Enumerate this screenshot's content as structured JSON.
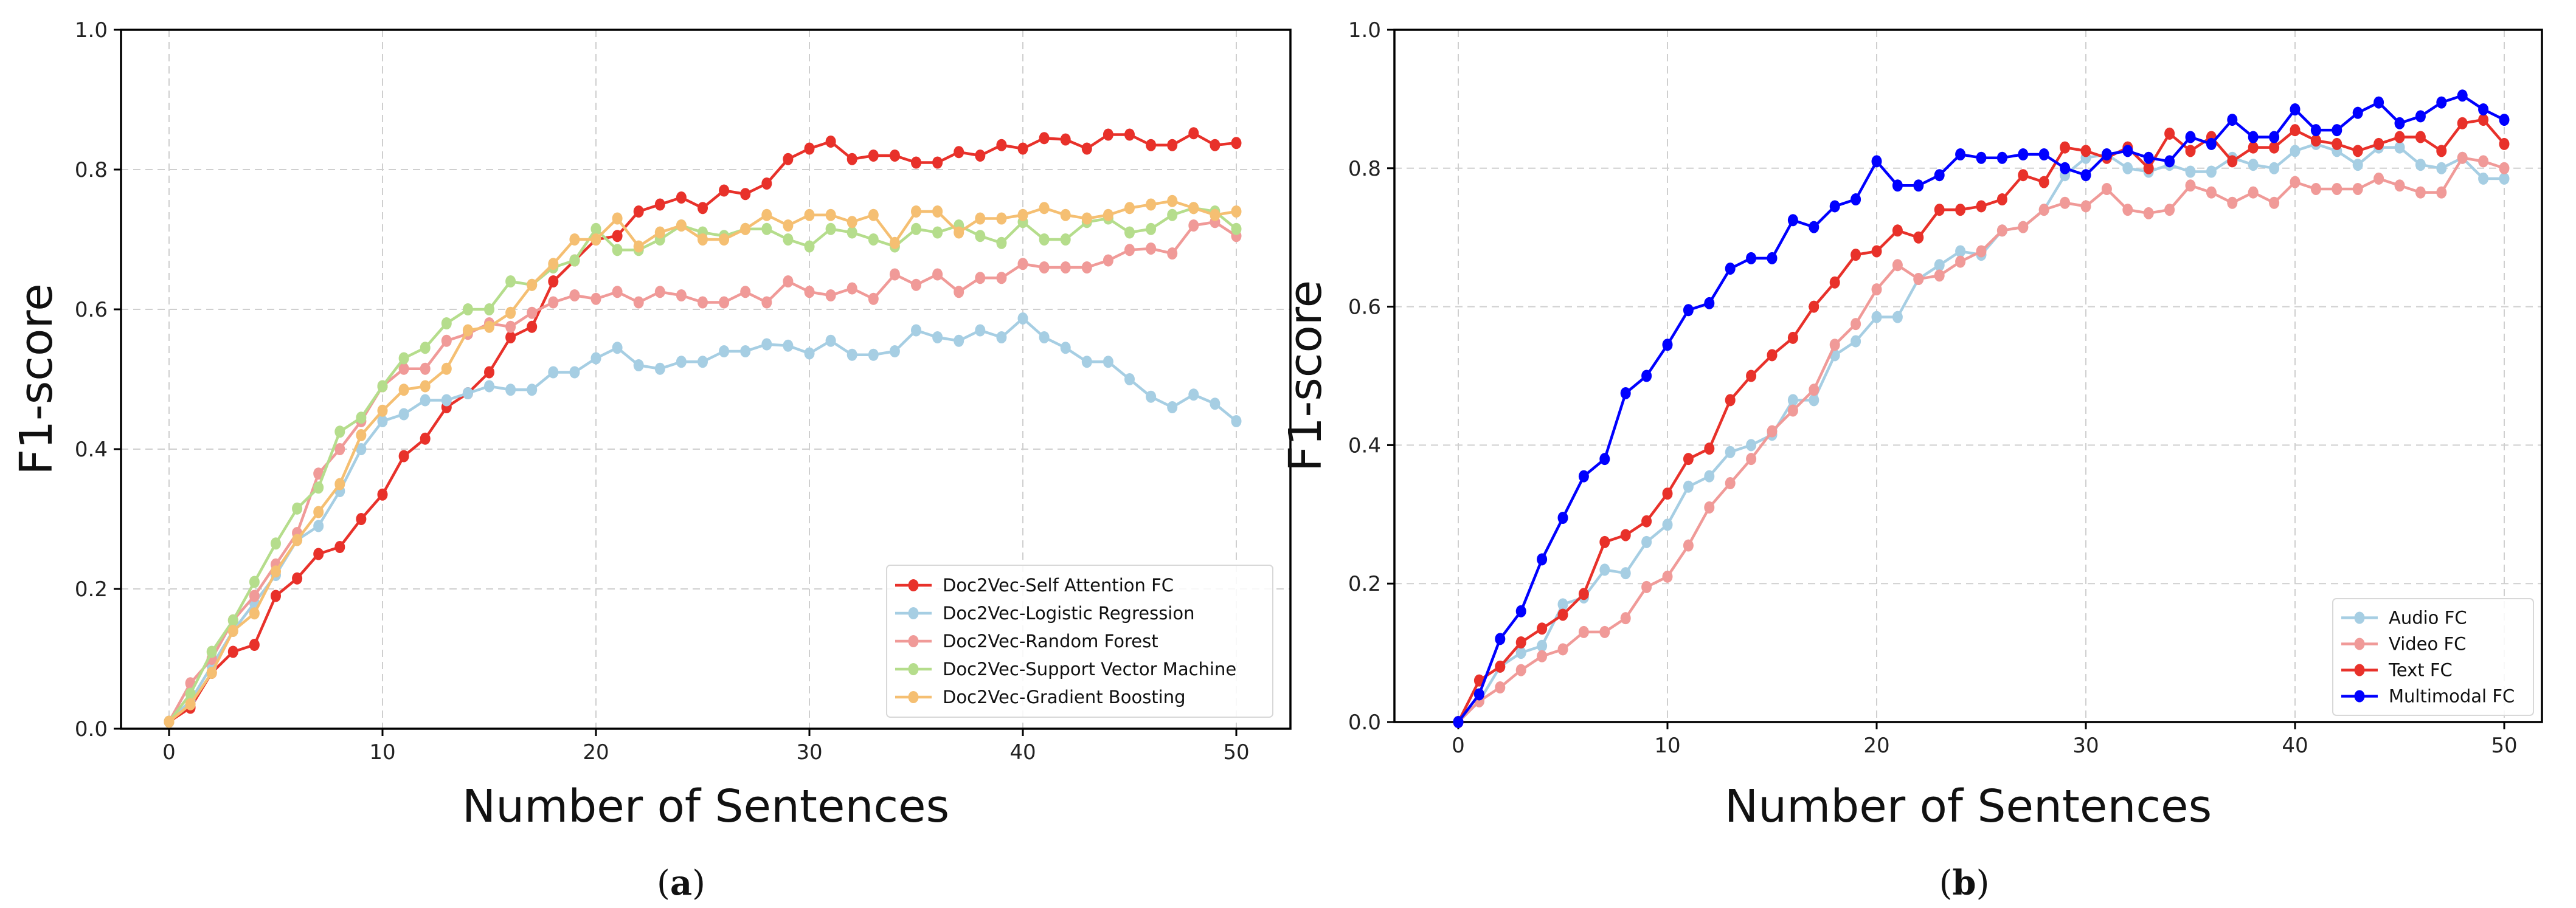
{
  "chart_data": [
    {
      "type": "line",
      "caption": "(a)",
      "caption_letter": "a",
      "xlabel": "Number of Sentences",
      "ylabel": "F1-score",
      "xlim": [
        -2,
        53
      ],
      "ylim": [
        0,
        1
      ],
      "xticks": [
        "0",
        "10",
        "20",
        "30",
        "40",
        "50"
      ],
      "yticks": [
        "0.0",
        "0.2",
        "0.4",
        "0.6",
        "0.8",
        "1.0"
      ],
      "grid": true,
      "legend_position": "bottom-right",
      "x": "0..50",
      "series": [
        {
          "name": "Doc2Vec-Self Attention FC",
          "color": "#e8312a",
          "values": [
            0.01,
            0.03,
            0.08,
            0.11,
            0.12,
            0.19,
            0.215,
            0.25,
            0.26,
            0.3,
            0.335,
            0.39,
            0.415,
            0.46,
            0.48,
            0.51,
            0.56,
            0.575,
            0.64,
            0.67,
            0.7,
            0.705,
            0.74,
            0.75,
            0.76,
            0.745,
            0.77,
            0.765,
            0.78,
            0.815,
            0.83,
            0.84,
            0.815,
            0.82,
            0.82,
            0.81,
            0.81,
            0.825,
            0.82,
            0.835,
            0.83,
            0.845,
            0.843,
            0.83,
            0.85,
            0.85,
            0.835,
            0.835,
            0.852,
            0.835,
            0.838
          ]
        },
        {
          "name": "Doc2Vec-Logistic Regression",
          "color": "#a6cee3",
          "values": [
            0.01,
            0.04,
            0.09,
            0.14,
            0.18,
            0.22,
            0.27,
            0.29,
            0.34,
            0.4,
            0.44,
            0.45,
            0.47,
            0.47,
            0.48,
            0.49,
            0.485,
            0.485,
            0.51,
            0.51,
            0.53,
            0.545,
            0.52,
            0.515,
            0.525,
            0.525,
            0.54,
            0.54,
            0.55,
            0.548,
            0.537,
            0.555,
            0.535,
            0.535,
            0.54,
            0.57,
            0.56,
            0.555,
            0.57,
            0.56,
            0.587,
            0.56,
            0.545,
            0.525,
            0.525,
            0.5,
            0.475,
            0.46,
            0.478,
            0.465,
            0.44
          ]
        },
        {
          "name": "Doc2Vec-Random Forest",
          "color": "#f09a98",
          "values": [
            0.01,
            0.065,
            0.1,
            0.155,
            0.19,
            0.235,
            0.28,
            0.365,
            0.4,
            0.44,
            0.49,
            0.515,
            0.515,
            0.555,
            0.565,
            0.58,
            0.575,
            0.595,
            0.61,
            0.62,
            0.615,
            0.625,
            0.61,
            0.625,
            0.62,
            0.61,
            0.61,
            0.625,
            0.61,
            0.64,
            0.625,
            0.62,
            0.63,
            0.615,
            0.65,
            0.635,
            0.65,
            0.625,
            0.645,
            0.645,
            0.665,
            0.66,
            0.66,
            0.66,
            0.67,
            0.685,
            0.687,
            0.68,
            0.72,
            0.725,
            0.705
          ]
        },
        {
          "name": "Doc2Vec-Support Vector Machine",
          "color": "#b5dd8c",
          "values": [
            0.01,
            0.05,
            0.11,
            0.155,
            0.21,
            0.265,
            0.315,
            0.345,
            0.425,
            0.445,
            0.49,
            0.53,
            0.545,
            0.58,
            0.6,
            0.6,
            0.64,
            0.635,
            0.66,
            0.67,
            0.715,
            0.685,
            0.685,
            0.7,
            0.72,
            0.71,
            0.705,
            0.715,
            0.715,
            0.7,
            0.69,
            0.715,
            0.71,
            0.7,
            0.69,
            0.715,
            0.71,
            0.72,
            0.705,
            0.695,
            0.725,
            0.7,
            0.7,
            0.725,
            0.73,
            0.71,
            0.715,
            0.735,
            0.745,
            0.74,
            0.715
          ]
        },
        {
          "name": "Doc2Vec-Gradient Boosting",
          "color": "#f5bf72",
          "values": [
            0.01,
            0.035,
            0.08,
            0.14,
            0.165,
            0.225,
            0.27,
            0.31,
            0.35,
            0.42,
            0.455,
            0.485,
            0.49,
            0.515,
            0.57,
            0.575,
            0.595,
            0.635,
            0.665,
            0.7,
            0.7,
            0.73,
            0.69,
            0.71,
            0.72,
            0.7,
            0.7,
            0.715,
            0.735,
            0.72,
            0.735,
            0.735,
            0.725,
            0.735,
            0.695,
            0.74,
            0.74,
            0.71,
            0.73,
            0.73,
            0.735,
            0.745,
            0.735,
            0.73,
            0.735,
            0.745,
            0.75,
            0.755,
            0.745,
            0.735,
            0.74
          ]
        }
      ]
    },
    {
      "type": "line",
      "caption": "(b)",
      "caption_letter": "b",
      "xlabel": "Number of Sentences",
      "ylabel": "F1-score",
      "xlim": [
        -2.5,
        52
      ],
      "ylim": [
        0,
        1
      ],
      "xticks": [
        "0",
        "10",
        "20",
        "30",
        "40",
        "50"
      ],
      "yticks": [
        "0.0",
        "0.2",
        "0.4",
        "0.6",
        "0.8",
        "1.0"
      ],
      "grid": true,
      "legend_position": "bottom-right",
      "x": "0..50",
      "series": [
        {
          "name": "Audio FC",
          "color": "#a6cee3",
          "values": [
            0.0,
            0.03,
            0.08,
            0.1,
            0.11,
            0.17,
            0.18,
            0.22,
            0.215,
            0.26,
            0.285,
            0.34,
            0.355,
            0.39,
            0.4,
            0.415,
            0.465,
            0.465,
            0.53,
            0.55,
            0.585,
            0.585,
            0.64,
            0.66,
            0.68,
            0.675,
            0.71,
            0.715,
            0.74,
            0.79,
            0.815,
            0.82,
            0.8,
            0.795,
            0.805,
            0.795,
            0.795,
            0.815,
            0.805,
            0.8,
            0.825,
            0.835,
            0.825,
            0.805,
            0.83,
            0.83,
            0.805,
            0.8,
            0.815,
            0.785,
            0.785
          ]
        },
        {
          "name": "Video FC",
          "color": "#f09a98",
          "values": [
            0.0,
            0.03,
            0.05,
            0.075,
            0.095,
            0.105,
            0.13,
            0.13,
            0.15,
            0.195,
            0.21,
            0.255,
            0.31,
            0.345,
            0.38,
            0.42,
            0.45,
            0.48,
            0.545,
            0.575,
            0.625,
            0.66,
            0.64,
            0.645,
            0.665,
            0.68,
            0.71,
            0.715,
            0.74,
            0.75,
            0.745,
            0.77,
            0.74,
            0.735,
            0.74,
            0.775,
            0.765,
            0.75,
            0.765,
            0.75,
            0.78,
            0.77,
            0.77,
            0.77,
            0.785,
            0.775,
            0.765,
            0.765,
            0.815,
            0.81,
            0.8
          ]
        },
        {
          "name": "Text FC",
          "color": "#e8312a",
          "values": [
            0.0,
            0.06,
            0.08,
            0.115,
            0.135,
            0.155,
            0.185,
            0.26,
            0.27,
            0.29,
            0.33,
            0.38,
            0.395,
            0.465,
            0.5,
            0.53,
            0.555,
            0.6,
            0.635,
            0.675,
            0.68,
            0.71,
            0.7,
            0.74,
            0.74,
            0.745,
            0.755,
            0.79,
            0.78,
            0.83,
            0.825,
            0.815,
            0.83,
            0.8,
            0.85,
            0.825,
            0.845,
            0.81,
            0.83,
            0.83,
            0.855,
            0.84,
            0.835,
            0.825,
            0.835,
            0.845,
            0.845,
            0.825,
            0.865,
            0.87,
            0.835
          ]
        },
        {
          "name": "Multimodal FC",
          "color": "#0000ff",
          "values": [
            0.0,
            0.04,
            0.12,
            0.16,
            0.235,
            0.295,
            0.355,
            0.38,
            0.475,
            0.5,
            0.545,
            0.595,
            0.605,
            0.655,
            0.67,
            0.67,
            0.725,
            0.715,
            0.745,
            0.755,
            0.81,
            0.775,
            0.775,
            0.79,
            0.82,
            0.815,
            0.815,
            0.82,
            0.82,
            0.8,
            0.79,
            0.82,
            0.825,
            0.815,
            0.81,
            0.845,
            0.835,
            0.87,
            0.845,
            0.845,
            0.885,
            0.855,
            0.855,
            0.88,
            0.895,
            0.865,
            0.875,
            0.895,
            0.905,
            0.885,
            0.87
          ]
        }
      ]
    }
  ]
}
